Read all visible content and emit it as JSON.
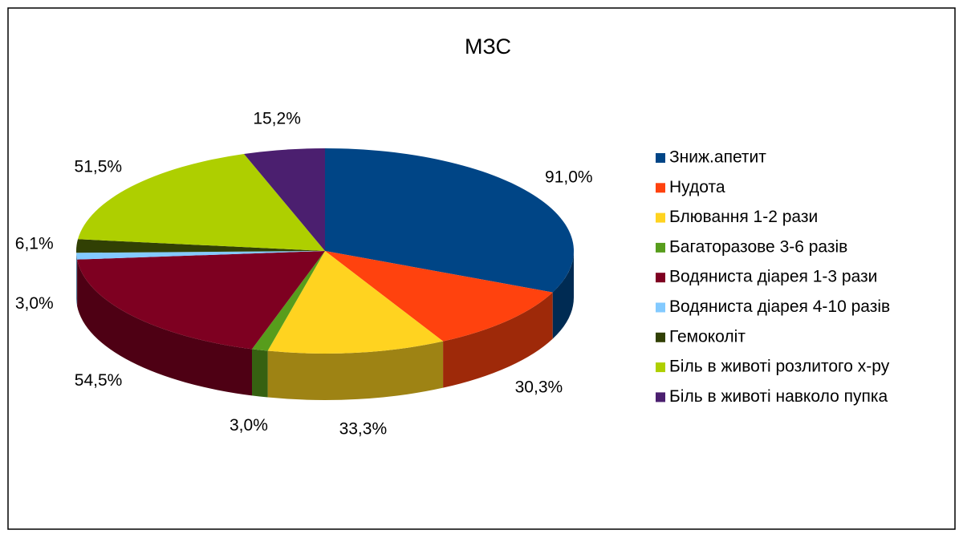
{
  "chart_data": {
    "type": "pie3d",
    "title": "МЗС",
    "categories": [
      "Зниж.апетит",
      "Нудота",
      "Блювання 1-2 рази",
      "Багаторазове 3-6 разів",
      "Водяниста діарея 1-3 рази",
      "Водяниста діарея 4-10 разів",
      "Гемоколіт",
      "Біль в животі розлитого х-ру",
      "Біль в животі навколо пупка"
    ],
    "values": [
      91.0,
      30.3,
      33.3,
      3.0,
      54.5,
      3.0,
      6.1,
      51.5,
      15.2
    ],
    "value_labels": [
      "91,0%",
      "30,3%",
      "33,3%",
      "3,0%",
      "54,5%",
      "3,0%",
      "6,1%",
      "51,5%",
      "15,2%"
    ],
    "colors": [
      "#004586",
      "#ff420e",
      "#ffd320",
      "#579d1c",
      "#7e0021",
      "#83caff",
      "#314004",
      "#aecf00",
      "#4b1f6f"
    ],
    "legend": "right"
  }
}
